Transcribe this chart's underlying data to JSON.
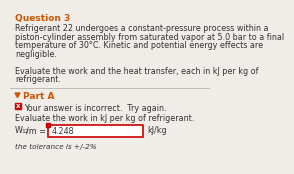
{
  "question_label": "Question 3",
  "body_line1": "Refrigerant 22 undergoes a constant-pressure process within a",
  "body_line2": "piston-cylinder assembly from saturated vapor at 5.0 bar to a final",
  "body_line3": "temperature of 30°C. Kinetic and potential energy effects are",
  "body_line4": "negligible.",
  "body_line5": "",
  "body_line6": "Evaluate the work and the heat transfer, each in kJ per kg of",
  "body_line7": "refrigerant.",
  "part_label": "Part A",
  "incorrect_text": "Your answer is incorrect.  Try again.",
  "eval_text": "Evaluate the work in kJ per kg of refrigerant.",
  "answer_value": "4.248",
  "unit_label": "kJ/kg",
  "tolerance_text": "the tolerance is +/-2%",
  "bg_color": "#f0ede8",
  "question_color": "#cc5500",
  "part_color": "#cc5500",
  "incorrect_icon_color": "#cc0000",
  "box_border_color": "#cc0000",
  "input_bg": "#ffffff",
  "divider_color": "#c0bbb5",
  "text_color": "#333333",
  "body_fontsize": 5.8,
  "question_fontsize": 6.5,
  "part_fontsize": 6.5,
  "small_fontsize": 5.2,
  "subscript_fontsize": 4.5
}
